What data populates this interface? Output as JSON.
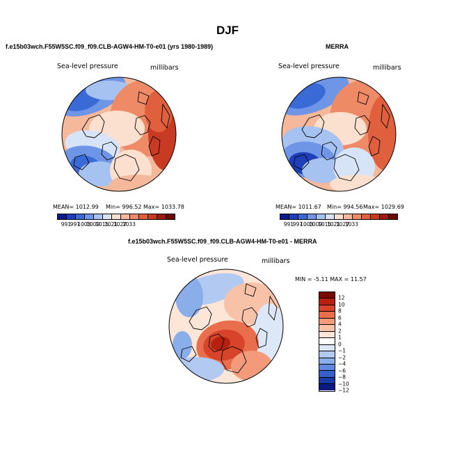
{
  "page": {
    "title": "DJF"
  },
  "panels": [
    {
      "id": "model",
      "subtitle": "f.e15b03wch.F55W5SC.f09_f09.CLB-AGW4-HM-T0-e01 (yrs 1980-1989)",
      "left_label": "Sea-level pressure",
      "right_label": "millibars",
      "stats": {
        "mean": "MEAN= 1012.99",
        "min": "Min= 996.52",
        "max": "Max= 1033.78"
      },
      "colorbar_ticks": [
        "991",
        "997",
        "1003",
        "1009",
        "1015",
        "1021",
        "1027",
        "1033"
      ]
    },
    {
      "id": "merra",
      "subtitle": "MERRA",
      "left_label": "Sea-level pressure",
      "right_label": "millibars",
      "stats": {
        "mean": "MEAN= 1011.67",
        "min": "Min= 994.56",
        "max": "Max= 1029.69"
      },
      "colorbar_ticks": [
        "991",
        "997",
        "1003",
        "1009",
        "1015",
        "1021",
        "1027",
        "1033"
      ]
    }
  ],
  "difference": {
    "subtitle": "f.e15b03wch.F55W5SC.f09_f09.CLB-AGW4-HM-T0-e01 - MERRA",
    "left_label": "Sea-level pressure",
    "right_label": "millibars",
    "stats": "MIN =  -5.11  MAX =   11.57",
    "colorbar_ticks": [
      "12",
      "10",
      "8",
      "6",
      "4",
      "2",
      "1",
      "0",
      "−1",
      "−2",
      "−4",
      "−6",
      "−8",
      "−10",
      "−12"
    ]
  },
  "colors": {
    "abs_scale": [
      "#0b1a8c",
      "#1e3fb8",
      "#3a6ad6",
      "#6e95e6",
      "#a6c2f0",
      "#d7e4f7",
      "#fbe0cf",
      "#f6b89a",
      "#ee8a66",
      "#e0603e",
      "#c83a22",
      "#9e1a10",
      "#6b0a05"
    ],
    "diff_scale": [
      "#7a0a06",
      "#b5200f",
      "#d8442a",
      "#e96e4d",
      "#f39a7a",
      "#f8c2a8",
      "#fde6d8",
      "#ffffff",
      "#dce8f8",
      "#b2caf2",
      "#8aaeea",
      "#5f88de",
      "#3660c8",
      "#1a3aa8",
      "#0a1a80"
    ],
    "coast": "#000000"
  }
}
